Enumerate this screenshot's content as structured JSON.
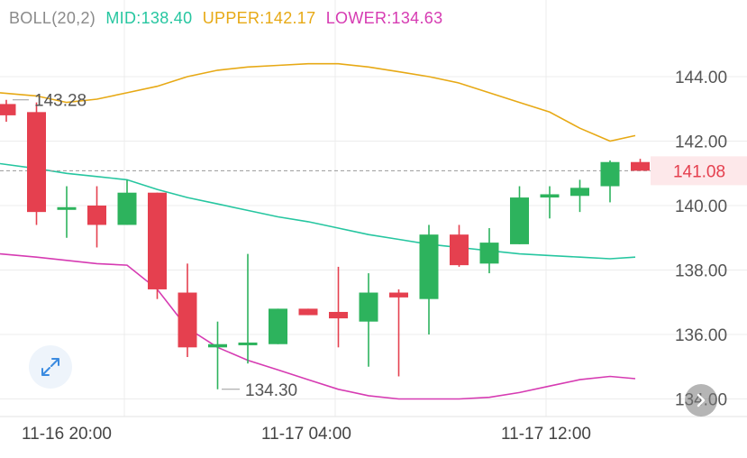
{
  "legend": {
    "name": "BOLL(20,2)",
    "mid": "MID:138.40",
    "upper": "UPPER:142.17",
    "lower": "LOWER:134.63"
  },
  "colors": {
    "up": "#2db35d",
    "down": "#e5404f",
    "mid": "#26c6a0",
    "upper": "#e7a915",
    "lower": "#d63bb2",
    "label_gray": "#9a9a9a",
    "grid": "#ececec",
    "price_tag_bg": "#fde8ea"
  },
  "icons": {
    "expand": "expand-arrows-icon",
    "scroll_right": "chevron-right-icon"
  },
  "chart_data": {
    "type": "candlestick",
    "title": "BOLL(20,2)",
    "ylim": [
      133.8,
      146.2
    ],
    "yticks": [
      "134.00",
      "136.00",
      "138.00",
      "140.00",
      "142.00",
      "144.00"
    ],
    "xtick_labels": [
      "11-16 20:00",
      "11-17 04:00",
      "11-17 12:00"
    ],
    "current_price": "141.08",
    "high_label": "143.28",
    "low_label": "134.30",
    "candles": [
      {
        "o": 143.15,
        "h": 143.28,
        "l": 142.6,
        "c": 142.8
      },
      {
        "o": 142.9,
        "h": 143.2,
        "l": 139.4,
        "c": 139.8
      },
      {
        "o": 139.9,
        "h": 140.6,
        "l": 139.0,
        "c": 139.95
      },
      {
        "o": 140.0,
        "h": 140.6,
        "l": 138.7,
        "c": 139.4
      },
      {
        "o": 139.4,
        "h": 140.8,
        "l": 139.4,
        "c": 140.4
      },
      {
        "o": 140.4,
        "h": 140.4,
        "l": 137.1,
        "c": 137.4
      },
      {
        "o": 137.3,
        "h": 138.2,
        "l": 135.3,
        "c": 135.6
      },
      {
        "o": 135.6,
        "h": 136.4,
        "l": 134.3,
        "c": 135.7
      },
      {
        "o": 135.7,
        "h": 138.5,
        "l": 135.1,
        "c": 135.75
      },
      {
        "o": 135.7,
        "h": 136.8,
        "l": 135.7,
        "c": 136.8
      },
      {
        "o": 136.8,
        "h": 136.8,
        "l": 136.6,
        "c": 136.6
      },
      {
        "o": 136.7,
        "h": 138.1,
        "l": 135.6,
        "c": 136.5
      },
      {
        "o": 136.4,
        "h": 137.9,
        "l": 135.0,
        "c": 137.3
      },
      {
        "o": 137.3,
        "h": 137.4,
        "l": 134.7,
        "c": 137.15
      },
      {
        "o": 137.1,
        "h": 139.4,
        "l": 136.0,
        "c": 139.1
      },
      {
        "o": 139.1,
        "h": 139.4,
        "l": 138.1,
        "c": 138.15
      },
      {
        "o": 138.2,
        "h": 139.3,
        "l": 137.9,
        "c": 138.85
      },
      {
        "o": 138.8,
        "h": 140.6,
        "l": 138.8,
        "c": 140.25
      },
      {
        "o": 140.25,
        "h": 140.6,
        "l": 139.6,
        "c": 140.35
      },
      {
        "o": 140.3,
        "h": 140.8,
        "l": 139.8,
        "c": 140.55
      },
      {
        "o": 140.6,
        "h": 141.4,
        "l": 140.1,
        "c": 141.35
      },
      {
        "o": 141.35,
        "h": 141.45,
        "l": 141.08,
        "c": 141.08
      }
    ],
    "upper_band": [
      143.5,
      143.4,
      143.2,
      143.3,
      143.5,
      143.7,
      144.0,
      144.2,
      144.3,
      144.35,
      144.4,
      144.4,
      144.3,
      144.15,
      144.0,
      143.8,
      143.5,
      143.2,
      142.9,
      142.4,
      142.0,
      142.17
    ],
    "mid_band": [
      141.3,
      141.15,
      141.0,
      140.9,
      140.8,
      140.5,
      140.25,
      140.05,
      139.85,
      139.65,
      139.5,
      139.3,
      139.1,
      138.95,
      138.8,
      138.7,
      138.6,
      138.5,
      138.45,
      138.4,
      138.35,
      138.4
    ],
    "lower_band": [
      138.5,
      138.4,
      138.3,
      138.2,
      138.15,
      137.4,
      136.2,
      135.6,
      135.2,
      134.9,
      134.6,
      134.3,
      134.1,
      134.0,
      134.0,
      134.0,
      134.05,
      134.2,
      134.4,
      134.6,
      134.7,
      134.63
    ]
  }
}
